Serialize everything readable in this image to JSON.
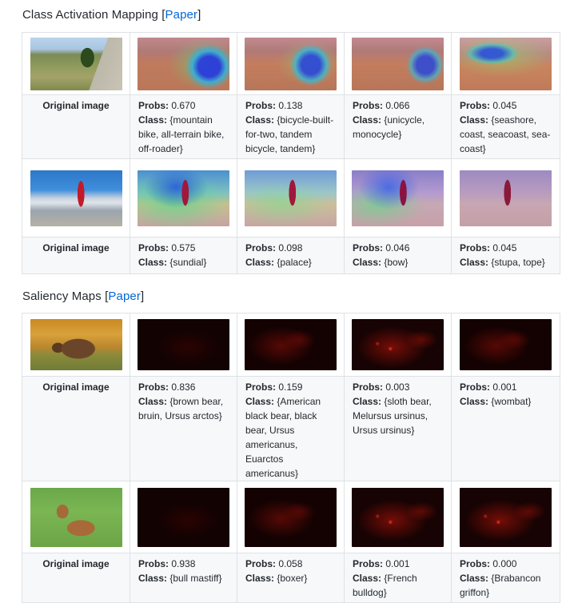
{
  "sections": [
    {
      "heading": "Class Activation Mapping",
      "link_label": "Paper",
      "rows": [
        {
          "original_label": "Original image",
          "results": [
            {
              "probs": "0.670",
              "class": "{mountain bike, all-terrain bike, off-roader}"
            },
            {
              "probs": "0.138",
              "class": "{bicycle-built-for-two, tandem bicycle, tandem}"
            },
            {
              "probs": "0.066",
              "class": "{unicycle, monocycle}"
            },
            {
              "probs": "0.045",
              "class": "{seashore, coast, seacoast, sea-coast}"
            }
          ]
        },
        {
          "original_label": "Original image",
          "results": [
            {
              "probs": "0.575",
              "class": "{sundial}"
            },
            {
              "probs": "0.098",
              "class": "{palace}"
            },
            {
              "probs": "0.046",
              "class": "{bow}"
            },
            {
              "probs": "0.045",
              "class": "{stupa, tope}"
            }
          ]
        }
      ]
    },
    {
      "heading": "Saliency Maps",
      "link_label": "Paper",
      "rows": [
        {
          "original_label": "Original image",
          "results": [
            {
              "probs": "0.836",
              "class": "{brown bear, bruin, Ursus arctos}"
            },
            {
              "probs": "0.159",
              "class": "{American black bear, black bear, Ursus americanus, Euarctos americanus}"
            },
            {
              "probs": "0.003",
              "class": "{sloth bear, Melursus ursinus, Ursus ursinus}"
            },
            {
              "probs": "0.001",
              "class": "{wombat}"
            }
          ]
        },
        {
          "original_label": "Original image",
          "results": [
            {
              "probs": "0.938",
              "class": "{bull mastiff}"
            },
            {
              "probs": "0.058",
              "class": "{boxer}"
            },
            {
              "probs": "0.001",
              "class": "{French bulldog}"
            },
            {
              "probs": "0.000",
              "class": "{Brabancon griffon}"
            }
          ]
        }
      ]
    }
  ],
  "labels": {
    "probs_label": "Probs:",
    "class_label": "Class:"
  },
  "colors": {
    "link": "#0366d6",
    "text": "#24292e",
    "border": "#dfe2e5",
    "stripe": "#f6f8fa"
  }
}
